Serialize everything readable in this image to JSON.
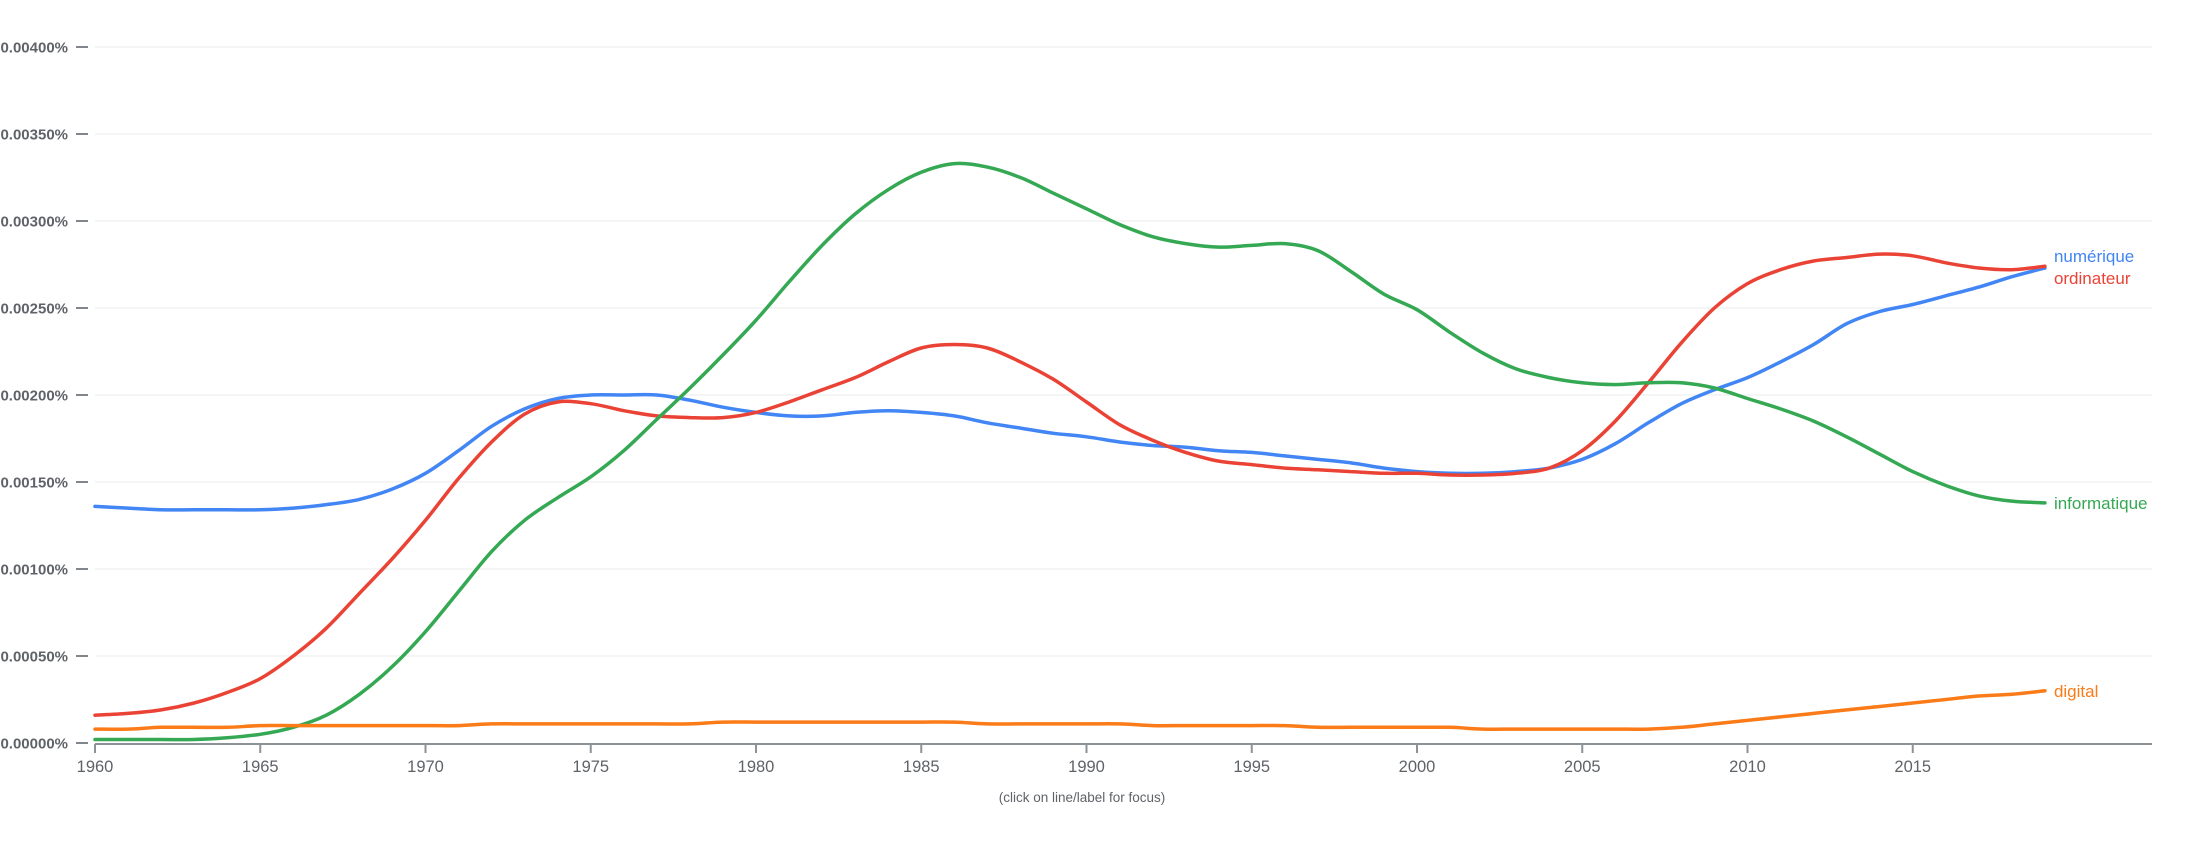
{
  "caption": "(click on line/label for focus)",
  "colors": {
    "axis_text": "#5f6368",
    "grid_line": "#f1f3f4",
    "axis_line": "#8d9297",
    "tick_mark": "#8d9297"
  },
  "chart_data": {
    "type": "line",
    "title": "",
    "xlabel": "",
    "ylabel": "",
    "grid": true,
    "legend_position": "right-end-labels",
    "x_start_year": 1960,
    "x_end_year": 2019,
    "x_tick_years": [
      1960,
      1965,
      1970,
      1975,
      1980,
      1985,
      1990,
      1995,
      2000,
      2005,
      2010,
      2015
    ],
    "y_axis": {
      "min_percent": 0.0,
      "max_percent": 0.004,
      "step_percent": 0.0005,
      "tick_labels": [
        "0.00000%",
        "0.00050%",
        "0.00100%",
        "0.00150%",
        "0.00200%",
        "0.00250%",
        "0.00300%",
        "0.00350%",
        "0.00400%"
      ]
    },
    "series": [
      {
        "name": "numérique",
        "color": "#4285f4",
        "values": [
          0.00136,
          0.00135,
          0.00134,
          0.00134,
          0.00134,
          0.00134,
          0.00135,
          0.00137,
          0.0014,
          0.00146,
          0.00155,
          0.00168,
          0.00182,
          0.00192,
          0.00198,
          0.002,
          0.002,
          0.002,
          0.00197,
          0.00193,
          0.0019,
          0.00188,
          0.00188,
          0.0019,
          0.00191,
          0.0019,
          0.00188,
          0.00184,
          0.00181,
          0.00178,
          0.00176,
          0.00173,
          0.00171,
          0.0017,
          0.00168,
          0.00167,
          0.00165,
          0.00163,
          0.00161,
          0.00158,
          0.00156,
          0.00155,
          0.00155,
          0.00156,
          0.00158,
          0.00163,
          0.00172,
          0.00184,
          0.00195,
          0.00203,
          0.0021,
          0.00219,
          0.00229,
          0.00241,
          0.00248,
          0.00252,
          0.00257,
          0.00262,
          0.00268,
          0.00273
        ]
      },
      {
        "name": "ordinateur",
        "color": "#ea4335",
        "values": [
          0.00016,
          0.00017,
          0.00019,
          0.00023,
          0.00029,
          0.00037,
          0.0005,
          0.00066,
          0.00086,
          0.00106,
          0.00128,
          0.00152,
          0.00173,
          0.00189,
          0.00196,
          0.00195,
          0.00191,
          0.00188,
          0.00187,
          0.00187,
          0.0019,
          0.00196,
          0.00203,
          0.0021,
          0.00219,
          0.00227,
          0.00229,
          0.00227,
          0.00219,
          0.00209,
          0.00196,
          0.00183,
          0.00174,
          0.00167,
          0.00162,
          0.0016,
          0.00158,
          0.00157,
          0.00156,
          0.00155,
          0.00155,
          0.00154,
          0.00154,
          0.00155,
          0.00158,
          0.00168,
          0.00185,
          0.00207,
          0.0023,
          0.0025,
          0.00264,
          0.00272,
          0.00277,
          0.00279,
          0.00281,
          0.0028,
          0.00276,
          0.00273,
          0.00272,
          0.00274
        ]
      },
      {
        "name": "informatique",
        "color": "#34a853",
        "values": [
          2e-05,
          2e-05,
          2e-05,
          2e-05,
          3e-05,
          5e-05,
          9e-05,
          0.00016,
          0.00028,
          0.00044,
          0.00064,
          0.00087,
          0.0011,
          0.00128,
          0.00141,
          0.00153,
          0.00168,
          0.00186,
          0.00204,
          0.00223,
          0.00243,
          0.00265,
          0.00286,
          0.00304,
          0.00318,
          0.00328,
          0.00333,
          0.00331,
          0.00325,
          0.00316,
          0.00307,
          0.00298,
          0.00291,
          0.00287,
          0.00285,
          0.00286,
          0.00287,
          0.00283,
          0.00271,
          0.00258,
          0.00249,
          0.00236,
          0.00224,
          0.00215,
          0.0021,
          0.00207,
          0.00206,
          0.00207,
          0.00207,
          0.00204,
          0.00198,
          0.00192,
          0.00185,
          0.00176,
          0.00166,
          0.00156,
          0.00148,
          0.00142,
          0.00139,
          0.00138
        ]
      },
      {
        "name": "digital",
        "color": "#fa7b17",
        "values": [
          8e-05,
          8e-05,
          9e-05,
          9e-05,
          9e-05,
          0.0001,
          0.0001,
          0.0001,
          0.0001,
          0.0001,
          0.0001,
          0.0001,
          0.00011,
          0.00011,
          0.00011,
          0.00011,
          0.00011,
          0.00011,
          0.00011,
          0.00012,
          0.00012,
          0.00012,
          0.00012,
          0.00012,
          0.00012,
          0.00012,
          0.00012,
          0.00011,
          0.00011,
          0.00011,
          0.00011,
          0.00011,
          0.0001,
          0.0001,
          0.0001,
          0.0001,
          0.0001,
          9e-05,
          9e-05,
          9e-05,
          9e-05,
          9e-05,
          8e-05,
          8e-05,
          8e-05,
          8e-05,
          8e-05,
          8e-05,
          9e-05,
          0.00011,
          0.00013,
          0.00015,
          0.00017,
          0.00019,
          0.00021,
          0.00023,
          0.00025,
          0.00027,
          0.00028,
          0.0003
        ]
      }
    ]
  }
}
